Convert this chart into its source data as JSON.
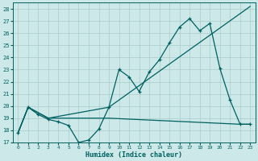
{
  "xlabel": "Humidex (Indice chaleur)",
  "xlim": [
    -0.5,
    23.5
  ],
  "ylim": [
    17,
    28.5
  ],
  "yticks": [
    17,
    18,
    19,
    20,
    21,
    22,
    23,
    24,
    25,
    26,
    27,
    28
  ],
  "xticks": [
    0,
    1,
    2,
    3,
    4,
    5,
    6,
    7,
    8,
    9,
    10,
    11,
    12,
    13,
    14,
    15,
    16,
    17,
    18,
    19,
    20,
    21,
    22,
    23
  ],
  "bg_color": "#cce8e8",
  "grid_color": "#aacccc",
  "line_color": "#006060",
  "series1_x": [
    0,
    1,
    2,
    3,
    4,
    5,
    6,
    7,
    8,
    9,
    10,
    11,
    12,
    13,
    14,
    15,
    16,
    17,
    18,
    19,
    20,
    21,
    22,
    23
  ],
  "series1_y": [
    17.8,
    19.9,
    19.3,
    18.9,
    18.7,
    18.4,
    17.0,
    17.2,
    18.1,
    19.9,
    23.0,
    22.4,
    21.2,
    22.8,
    23.8,
    25.2,
    26.5,
    27.2,
    26.2,
    26.8,
    23.1,
    20.5,
    18.5,
    18.5
  ],
  "series2_x": [
    0,
    1,
    3,
    9,
    23
  ],
  "series2_y": [
    17.8,
    19.9,
    19.0,
    19.9,
    28.2
  ],
  "series3_x": [
    0,
    1,
    3,
    9,
    22,
    23
  ],
  "series3_y": [
    17.8,
    19.9,
    19.0,
    19.0,
    18.5,
    18.5
  ]
}
